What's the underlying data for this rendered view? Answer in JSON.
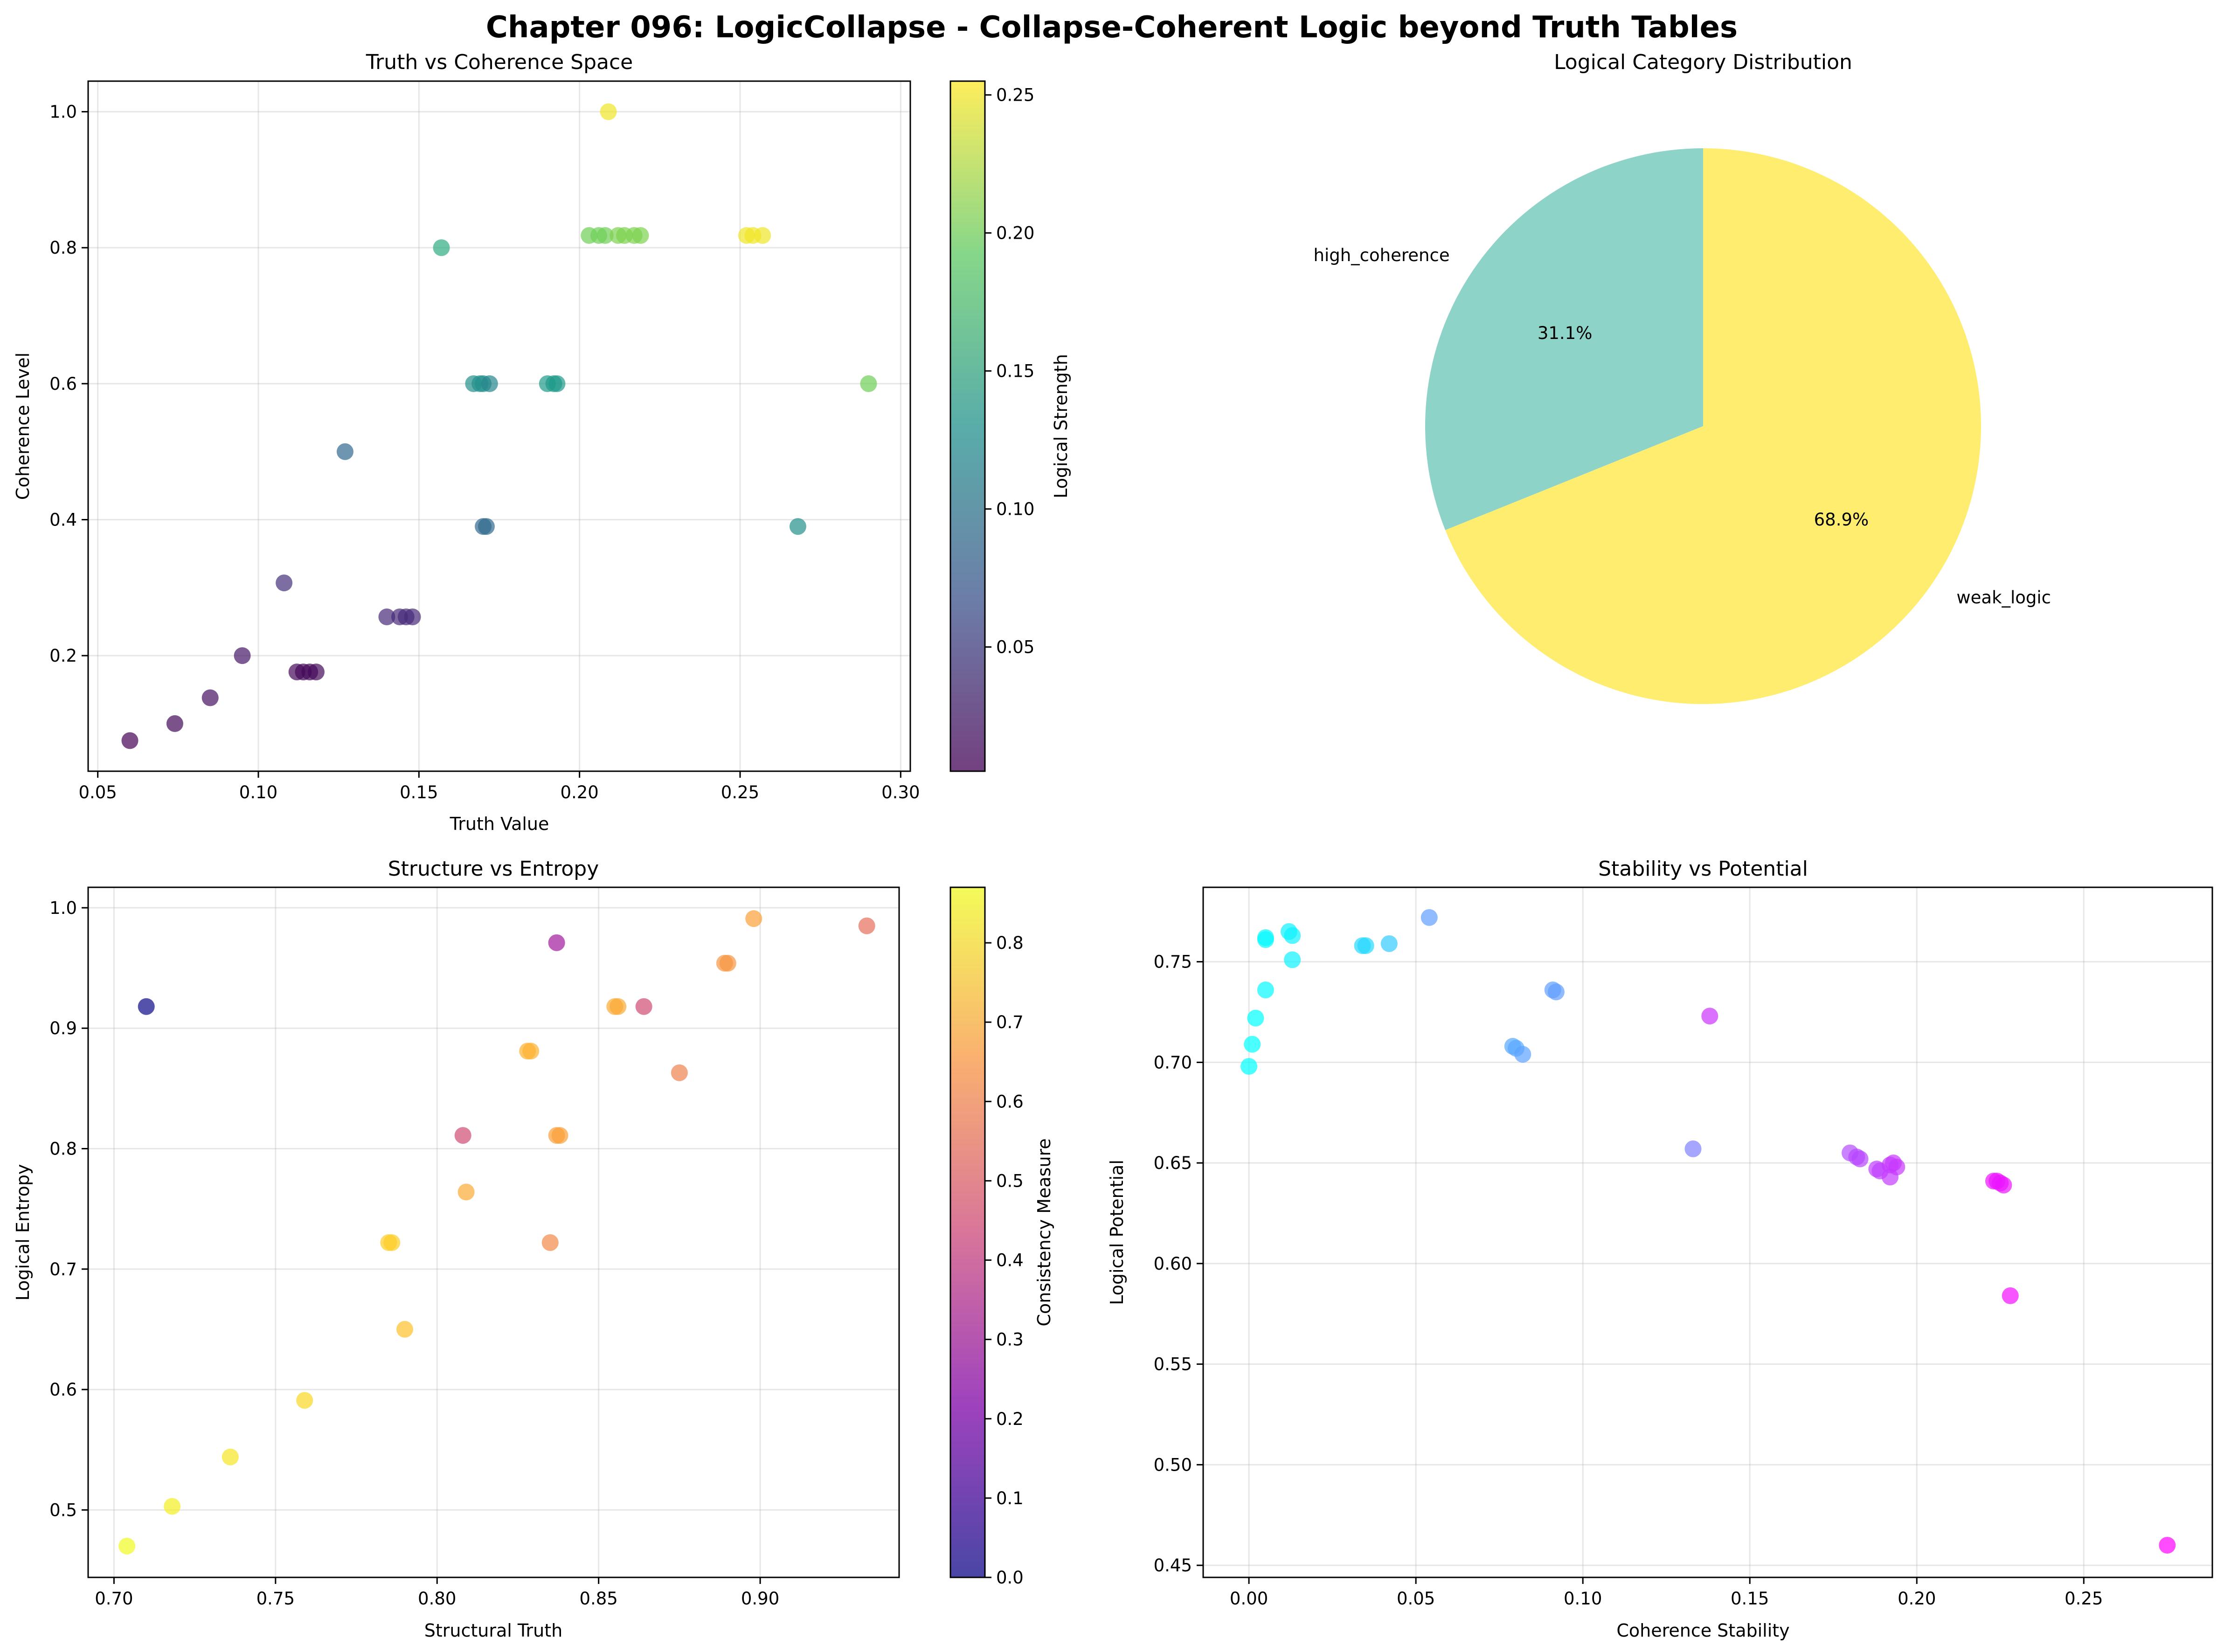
{
  "figure": {
    "title": "Chapter 096: LogicCollapse - Collapse-Coherent Logic beyond Truth Tables"
  },
  "chart_data": [
    {
      "id": "truth-coherence",
      "type": "scatter",
      "title": "Truth vs Coherence Space",
      "xlabel": "Truth Value",
      "ylabel": "Coherence Level",
      "xlim": [
        0.047,
        0.303
      ],
      "ylim": [
        0.03,
        1.045
      ],
      "xticks": [
        0.05,
        0.1,
        0.15,
        0.2,
        0.25,
        0.3
      ],
      "xtick_labels": [
        "0.05",
        "0.10",
        "0.15",
        "0.20",
        "0.25",
        "0.30"
      ],
      "yticks": [
        0.2,
        0.4,
        0.6,
        0.8,
        1.0
      ],
      "ytick_labels": [
        "0.2",
        "0.4",
        "0.6",
        "0.8",
        "1.0"
      ],
      "grid": true,
      "colormap": "viridis",
      "colorbar": {
        "label": "Logical Strength",
        "range": [
          0.005,
          0.255
        ],
        "ticks": [
          0.05,
          0.1,
          0.15,
          0.2,
          0.25
        ],
        "tick_labels": [
          "0.05",
          "0.10",
          "0.15",
          "0.20",
          "0.25"
        ]
      },
      "points": [
        {
          "x": 0.06,
          "y": 0.075,
          "c": 0.005
        },
        {
          "x": 0.074,
          "y": 0.1,
          "c": 0.01
        },
        {
          "x": 0.085,
          "y": 0.138,
          "c": 0.015
        },
        {
          "x": 0.095,
          "y": 0.2,
          "c": 0.02
        },
        {
          "x": 0.108,
          "y": 0.307,
          "c": 0.04
        },
        {
          "x": 0.112,
          "y": 0.176,
          "c": 0.01
        },
        {
          "x": 0.114,
          "y": 0.176,
          "c": 0.01
        },
        {
          "x": 0.116,
          "y": 0.176,
          "c": 0.01
        },
        {
          "x": 0.118,
          "y": 0.176,
          "c": 0.01
        },
        {
          "x": 0.127,
          "y": 0.5,
          "c": 0.09
        },
        {
          "x": 0.14,
          "y": 0.257,
          "c": 0.035
        },
        {
          "x": 0.144,
          "y": 0.257,
          "c": 0.035
        },
        {
          "x": 0.146,
          "y": 0.257,
          "c": 0.035
        },
        {
          "x": 0.148,
          "y": 0.257,
          "c": 0.035
        },
        {
          "x": 0.157,
          "y": 0.8,
          "c": 0.16
        },
        {
          "x": 0.167,
          "y": 0.6,
          "c": 0.13
        },
        {
          "x": 0.169,
          "y": 0.6,
          "c": 0.13
        },
        {
          "x": 0.17,
          "y": 0.6,
          "c": 0.13
        },
        {
          "x": 0.172,
          "y": 0.6,
          "c": 0.12
        },
        {
          "x": 0.17,
          "y": 0.39,
          "c": 0.09
        },
        {
          "x": 0.171,
          "y": 0.39,
          "c": 0.09
        },
        {
          "x": 0.19,
          "y": 0.6,
          "c": 0.14
        },
        {
          "x": 0.192,
          "y": 0.6,
          "c": 0.14
        },
        {
          "x": 0.193,
          "y": 0.6,
          "c": 0.14
        },
        {
          "x": 0.203,
          "y": 0.818,
          "c": 0.2
        },
        {
          "x": 0.206,
          "y": 0.818,
          "c": 0.2
        },
        {
          "x": 0.208,
          "y": 0.818,
          "c": 0.2
        },
        {
          "x": 0.209,
          "y": 1.0,
          "c": 0.25
        },
        {
          "x": 0.212,
          "y": 0.818,
          "c": 0.205
        },
        {
          "x": 0.214,
          "y": 0.818,
          "c": 0.205
        },
        {
          "x": 0.217,
          "y": 0.818,
          "c": 0.205
        },
        {
          "x": 0.219,
          "y": 0.818,
          "c": 0.205
        },
        {
          "x": 0.252,
          "y": 0.818,
          "c": 0.25
        },
        {
          "x": 0.254,
          "y": 0.818,
          "c": 0.25
        },
        {
          "x": 0.257,
          "y": 0.818,
          "c": 0.25
        },
        {
          "x": 0.268,
          "y": 0.39,
          "c": 0.13
        },
        {
          "x": 0.29,
          "y": 0.6,
          "c": 0.2
        }
      ]
    },
    {
      "id": "category-pie",
      "type": "pie",
      "title": "Logical Category Distribution",
      "slices": [
        {
          "label": "high_coherence",
          "value": 31.1,
          "pct_label": "31.1%",
          "color": "#8dd3c7"
        },
        {
          "label": "weak_logic",
          "value": 68.9,
          "pct_label": "68.9%",
          "color": "#ffed6f"
        }
      ]
    },
    {
      "id": "structure-entropy",
      "type": "scatter",
      "title": "Structure vs Entropy",
      "xlabel": "Structural Truth",
      "ylabel": "Logical Entropy",
      "xlim": [
        0.692,
        0.943
      ],
      "ylim": [
        0.444,
        1.017
      ],
      "xticks": [
        0.7,
        0.75,
        0.8,
        0.85,
        0.9
      ],
      "xtick_labels": [
        "0.70",
        "0.75",
        "0.80",
        "0.85",
        "0.90"
      ],
      "yticks": [
        0.5,
        0.6,
        0.7,
        0.8,
        0.9,
        1.0
      ],
      "ytick_labels": [
        "0.5",
        "0.6",
        "0.7",
        "0.8",
        "0.9",
        "1.0"
      ],
      "grid": true,
      "colormap": "plasma",
      "colorbar": {
        "label": "Consistency Measure",
        "range": [
          0.0,
          0.87
        ],
        "ticks": [
          0.0,
          0.1,
          0.2,
          0.3,
          0.4,
          0.5,
          0.6,
          0.7,
          0.8
        ],
        "tick_labels": [
          "0.0",
          "0.1",
          "0.2",
          "0.3",
          "0.4",
          "0.5",
          "0.6",
          "0.7",
          "0.8"
        ]
      },
      "points": [
        {
          "x": 0.704,
          "y": 0.47,
          "c": 0.87
        },
        {
          "x": 0.71,
          "y": 0.918,
          "c": 0.0
        },
        {
          "x": 0.718,
          "y": 0.503,
          "c": 0.85
        },
        {
          "x": 0.736,
          "y": 0.544,
          "c": 0.83
        },
        {
          "x": 0.759,
          "y": 0.591,
          "c": 0.8
        },
        {
          "x": 0.785,
          "y": 0.722,
          "c": 0.78
        },
        {
          "x": 0.786,
          "y": 0.722,
          "c": 0.78
        },
        {
          "x": 0.79,
          "y": 0.65,
          "c": 0.75
        },
        {
          "x": 0.808,
          "y": 0.811,
          "c": 0.45
        },
        {
          "x": 0.809,
          "y": 0.764,
          "c": 0.7
        },
        {
          "x": 0.828,
          "y": 0.881,
          "c": 0.72
        },
        {
          "x": 0.829,
          "y": 0.881,
          "c": 0.72
        },
        {
          "x": 0.835,
          "y": 0.722,
          "c": 0.62
        },
        {
          "x": 0.837,
          "y": 0.971,
          "c": 0.3
        },
        {
          "x": 0.837,
          "y": 0.811,
          "c": 0.68
        },
        {
          "x": 0.838,
          "y": 0.811,
          "c": 0.68
        },
        {
          "x": 0.855,
          "y": 0.918,
          "c": 0.7
        },
        {
          "x": 0.856,
          "y": 0.918,
          "c": 0.7
        },
        {
          "x": 0.864,
          "y": 0.918,
          "c": 0.45
        },
        {
          "x": 0.875,
          "y": 0.863,
          "c": 0.6
        },
        {
          "x": 0.889,
          "y": 0.954,
          "c": 0.65
        },
        {
          "x": 0.89,
          "y": 0.954,
          "c": 0.65
        },
        {
          "x": 0.898,
          "y": 0.991,
          "c": 0.68
        },
        {
          "x": 0.933,
          "y": 0.985,
          "c": 0.55
        }
      ]
    },
    {
      "id": "stability-potential",
      "type": "scatter",
      "title": "Stability vs Potential",
      "xlabel": "Coherence Stability",
      "ylabel": "Logical Potential",
      "xlim": [
        -0.0137,
        0.2885
      ],
      "ylim": [
        0.444,
        0.787
      ],
      "xticks": [
        0.0,
        0.05,
        0.1,
        0.15,
        0.2,
        0.25
      ],
      "xtick_labels": [
        "0.00",
        "0.05",
        "0.10",
        "0.15",
        "0.20",
        "0.25"
      ],
      "yticks": [
        0.45,
        0.5,
        0.55,
        0.6,
        0.65,
        0.7,
        0.75
      ],
      "ytick_labels": [
        "0.45",
        "0.50",
        "0.55",
        "0.60",
        "0.65",
        "0.70",
        "0.75"
      ],
      "grid": true,
      "colormap": "cool",
      "points": [
        {
          "x": 0.0,
          "y": 0.698,
          "c": 0.0
        },
        {
          "x": 0.001,
          "y": 0.709,
          "c": 0.0
        },
        {
          "x": 0.002,
          "y": 0.722,
          "c": 0.0
        },
        {
          "x": 0.005,
          "y": 0.736,
          "c": 0.02
        },
        {
          "x": 0.005,
          "y": 0.761,
          "c": 0.02
        },
        {
          "x": 0.005,
          "y": 0.762,
          "c": 0.02
        },
        {
          "x": 0.012,
          "y": 0.765,
          "c": 0.05
        },
        {
          "x": 0.013,
          "y": 0.763,
          "c": 0.05
        },
        {
          "x": 0.013,
          "y": 0.751,
          "c": 0.05
        },
        {
          "x": 0.034,
          "y": 0.758,
          "c": 0.15
        },
        {
          "x": 0.035,
          "y": 0.758,
          "c": 0.15
        },
        {
          "x": 0.042,
          "y": 0.759,
          "c": 0.2
        },
        {
          "x": 0.054,
          "y": 0.772,
          "c": 0.38
        },
        {
          "x": 0.079,
          "y": 0.708,
          "c": 0.35
        },
        {
          "x": 0.08,
          "y": 0.707,
          "c": 0.35
        },
        {
          "x": 0.082,
          "y": 0.704,
          "c": 0.36
        },
        {
          "x": 0.091,
          "y": 0.736,
          "c": 0.38
        },
        {
          "x": 0.092,
          "y": 0.735,
          "c": 0.38
        },
        {
          "x": 0.133,
          "y": 0.657,
          "c": 0.5
        },
        {
          "x": 0.138,
          "y": 0.723,
          "c": 0.8
        },
        {
          "x": 0.18,
          "y": 0.655,
          "c": 0.7
        },
        {
          "x": 0.182,
          "y": 0.653,
          "c": 0.72
        },
        {
          "x": 0.183,
          "y": 0.652,
          "c": 0.72
        },
        {
          "x": 0.188,
          "y": 0.647,
          "c": 0.75
        },
        {
          "x": 0.189,
          "y": 0.646,
          "c": 0.75
        },
        {
          "x": 0.192,
          "y": 0.643,
          "c": 0.77
        },
        {
          "x": 0.192,
          "y": 0.649,
          "c": 0.77
        },
        {
          "x": 0.193,
          "y": 0.65,
          "c": 0.78
        },
        {
          "x": 0.194,
          "y": 0.648,
          "c": 0.78
        },
        {
          "x": 0.223,
          "y": 0.641,
          "c": 0.92
        },
        {
          "x": 0.224,
          "y": 0.641,
          "c": 0.92
        },
        {
          "x": 0.225,
          "y": 0.64,
          "c": 0.92
        },
        {
          "x": 0.226,
          "y": 0.639,
          "c": 0.92
        },
        {
          "x": 0.228,
          "y": 0.584,
          "c": 0.95
        },
        {
          "x": 0.275,
          "y": 0.46,
          "c": 1.0
        }
      ]
    }
  ]
}
